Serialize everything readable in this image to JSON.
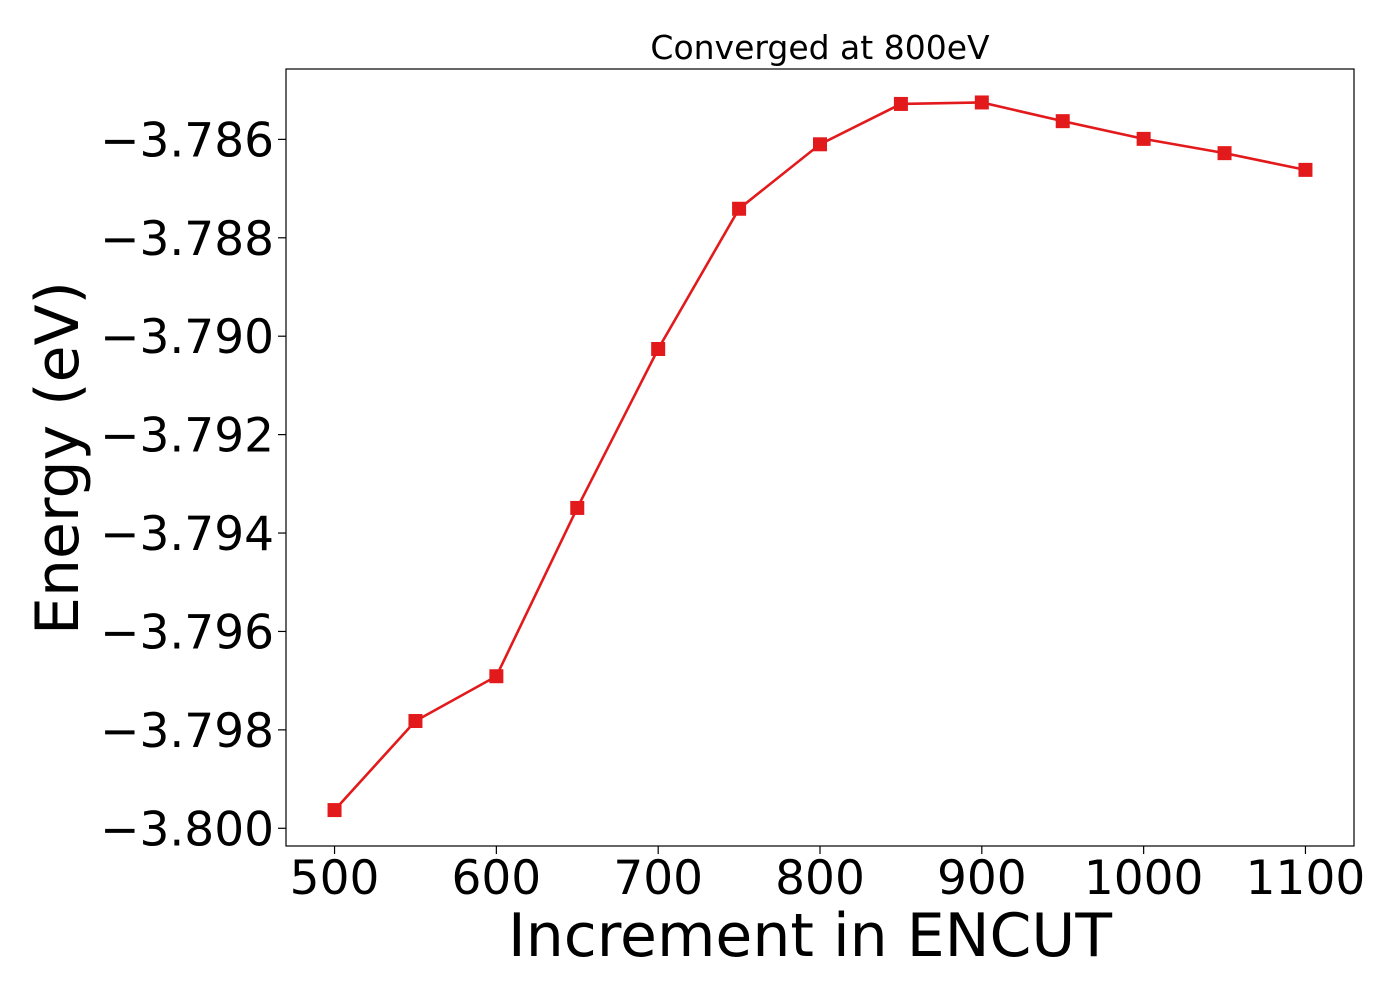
{
  "chart_data": {
    "type": "line",
    "title": "Converged at 800eV",
    "xlabel": "Increment in ENCUT",
    "ylabel": "Energy (eV)",
    "xlim": [
      470,
      1130
    ],
    "ylim": [
      -3.80036,
      -3.78457
    ],
    "xticks": [
      500,
      600,
      700,
      800,
      900,
      1000,
      1100
    ],
    "xtick_labels": [
      "500",
      "600",
      "700",
      "800",
      "900",
      "1000",
      "1100"
    ],
    "yticks": [
      -3.786,
      -3.788,
      -3.79,
      -3.792,
      -3.794,
      -3.796,
      -3.798,
      -3.8
    ],
    "ytick_labels": [
      "−3.786",
      "−3.788",
      "−3.790",
      "−3.792",
      "−3.794",
      "−3.796",
      "−3.798",
      "−3.800"
    ],
    "grid": false,
    "series": [
      {
        "color": "#e31a1c",
        "marker": "square",
        "x": [
          500,
          550,
          600,
          650,
          700,
          750,
          800,
          850,
          900,
          950,
          1000,
          1050,
          1100
        ],
        "y": [
          -3.79963,
          -3.79782,
          -3.79691,
          -3.79349,
          -3.79026,
          -3.78741,
          -3.7861,
          -3.78528,
          -3.78525,
          -3.78563,
          -3.78599,
          -3.78628,
          -3.78662
        ]
      }
    ]
  }
}
